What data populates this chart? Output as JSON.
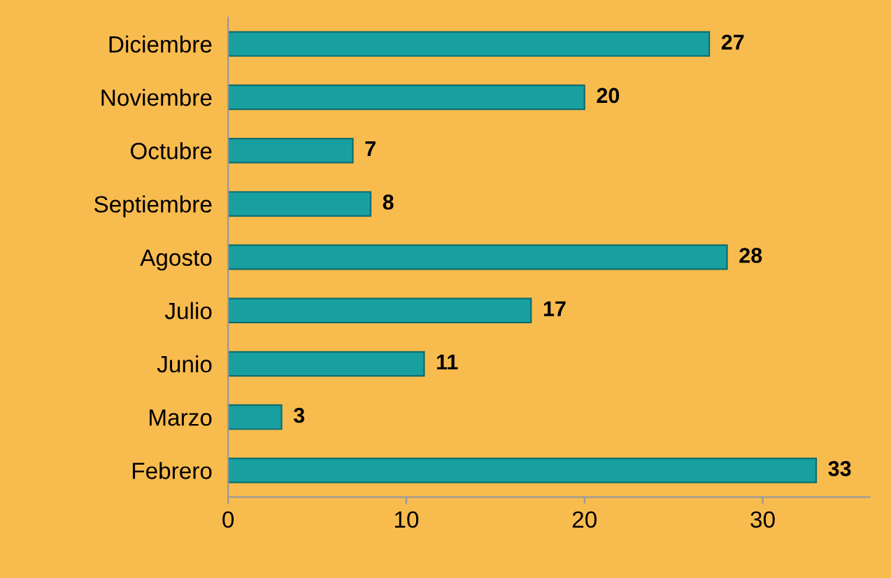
{
  "chart_data": {
    "type": "bar",
    "orientation": "horizontal",
    "categories": [
      "Diciembre",
      "Noviembre",
      "Octubre",
      "Septiembre",
      "Agosto",
      "Julio",
      "Junio",
      "Marzo",
      "Febrero"
    ],
    "values": [
      27,
      20,
      7,
      8,
      28,
      17,
      11,
      3,
      33
    ],
    "color": "#18a0a0",
    "data_labels": true,
    "xlim": [
      0,
      36
    ],
    "xticks": [
      0,
      10,
      20,
      30
    ],
    "grid": false,
    "legend": false
  }
}
